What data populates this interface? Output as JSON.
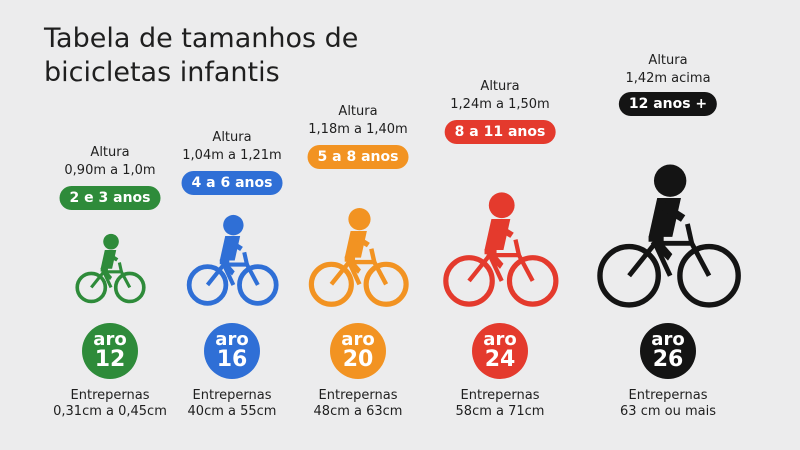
{
  "title_line1": "Tabela de tamanhos de",
  "title_line2": "bicicletas infantis",
  "columns": [
    {
      "altura_label": "Altura",
      "altura_value": "0,90m a 1,0m",
      "age": "2 e 3 anos",
      "aro_word": "aro",
      "aro_num": "12",
      "ent_label": "Entrepernas",
      "ent_value": "0,31cm a 0,45cm",
      "color": "#2e8b3a"
    },
    {
      "altura_label": "Altura",
      "altura_value": "1,04m a 1,21m",
      "age": "4 a 6 anos",
      "aro_word": "aro",
      "aro_num": "16",
      "ent_label": "Entrepernas",
      "ent_value": "40cm a 55cm",
      "color": "#2f6fd6"
    },
    {
      "altura_label": "Altura",
      "altura_value": "1,18m a 1,40m",
      "age": "5 a 8 anos",
      "aro_word": "aro",
      "aro_num": "20",
      "ent_label": "Entrepernas",
      "ent_value": "48cm a 63cm",
      "color": "#f29322"
    },
    {
      "altura_label": "Altura",
      "altura_value": "1,24m a 1,50m",
      "age": "8 a 11 anos",
      "aro_word": "aro",
      "aro_num": "24",
      "ent_label": "Entrepernas",
      "ent_value": "58cm a 71cm",
      "color": "#e43a2d"
    },
    {
      "altura_label": "Altura",
      "altura_value": "1,42m acima",
      "age": "12 anos +",
      "aro_word": "aro",
      "aro_num": "26",
      "ent_label": "Entrepernas",
      "ent_value": "63 cm ou mais",
      "color": "#141414"
    }
  ]
}
